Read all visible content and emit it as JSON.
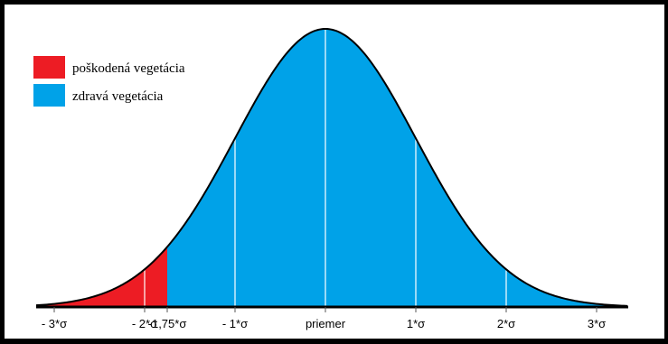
{
  "chart_data": {
    "type": "area",
    "title": "",
    "xlabel": "",
    "ylabel": "",
    "distribution": "normal",
    "xlim": [
      -3.2,
      3.35
    ],
    "colors": {
      "background": "#ffffff",
      "healthy": "#00a2e8",
      "damaged": "#ed1c24",
      "outline": "#000000",
      "sigma_lines": "#ffffff"
    },
    "legend": {
      "placement": "top-left",
      "entries": [
        {
          "label": "poškodená vegetácia",
          "color": "#ed1c24"
        },
        {
          "label": "zdravá vegetácia",
          "color": "#00a2e8"
        }
      ]
    },
    "regions": [
      {
        "name": "poškodená vegetácia",
        "from": -3.2,
        "to": -1.75,
        "color": "#ed1c24"
      },
      {
        "name": "zdravá vegetácia",
        "from": -1.75,
        "to": 3.35,
        "color": "#00a2e8"
      }
    ],
    "vertical_lines": [
      -2,
      -1,
      0,
      1,
      2
    ],
    "ticks": [
      {
        "x": -3,
        "label": "- 3*σ"
      },
      {
        "x": -2,
        "label": "- 2*σ"
      },
      {
        "x": -1.75,
        "label": "-1,75*σ"
      },
      {
        "x": -1,
        "label": "- 1*σ"
      },
      {
        "x": 0,
        "label": "priemer"
      },
      {
        "x": 1,
        "label": "1*σ"
      },
      {
        "x": 2,
        "label": "2*σ"
      },
      {
        "x": 3,
        "label": "3*σ"
      }
    ]
  }
}
